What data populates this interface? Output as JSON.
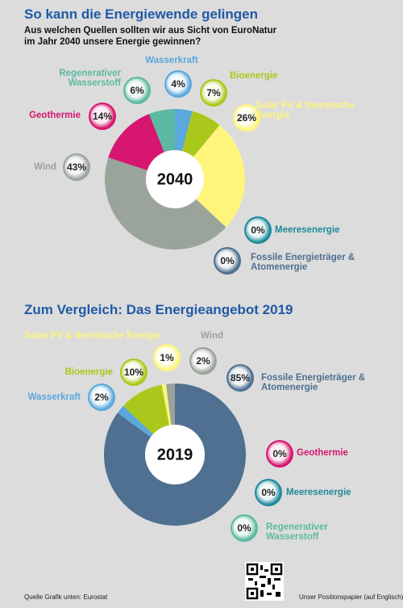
{
  "chart_data": [
    {
      "type": "donut",
      "title": "So kann die Energiewende gelingen",
      "subtitle": [
        "Aus welchen Quellen sollten wir aus Sicht von EuroNatur",
        "im Jahr 2040 unsere Energie gewinnen?"
      ],
      "center_label": "2040",
      "categories": [
        "Wasserkraft",
        "Bioenergie",
        "Solar PV & thermische Energie",
        "Meeresenergie",
        "Fossile Energieträger & Atomenergie",
        "Wind",
        "Geothermie",
        "Regenerativer Wasserstoff"
      ],
      "values": [
        4,
        7,
        26,
        0,
        0,
        43,
        14,
        6
      ],
      "value_labels": [
        "4%",
        "7%",
        "26%",
        "0%",
        "0%",
        "43%",
        "14%",
        "6%"
      ],
      "colors": [
        "#5aa8dc",
        "#a9c81b",
        "#fff57d",
        "#1f8a9b",
        "#4f7090",
        "#9aa49b",
        "#d6166f",
        "#5cb9a1"
      ]
    },
    {
      "type": "donut",
      "title": "Zum Vergleich: Das Energieangebot 2019",
      "center_label": "2019",
      "categories": [
        "Fossile Energieträger & Atomenergie",
        "Wasserkraft",
        "Bioenergie",
        "Solar PV & thermische Energie",
        "Wind",
        "Geothermie",
        "Meeresenergie",
        "Regenerativer Wasserstoff"
      ],
      "values": [
        85,
        2,
        10,
        1,
        2,
        0,
        0,
        0
      ],
      "value_labels": [
        "85%",
        "2%",
        "10%",
        "1%",
        "2%",
        "0%",
        "0%",
        "0%"
      ],
      "colors": [
        "#4f7090",
        "#5aa8dc",
        "#a9c81b",
        "#fff57d",
        "#9aa49b",
        "#d6166f",
        "#1f8a9b",
        "#5cb9a1"
      ]
    }
  ],
  "footer": {
    "source": "Quelle Grafik unten: Eurostat",
    "paper": "Unser Positionspapier (auf Englisch)"
  }
}
